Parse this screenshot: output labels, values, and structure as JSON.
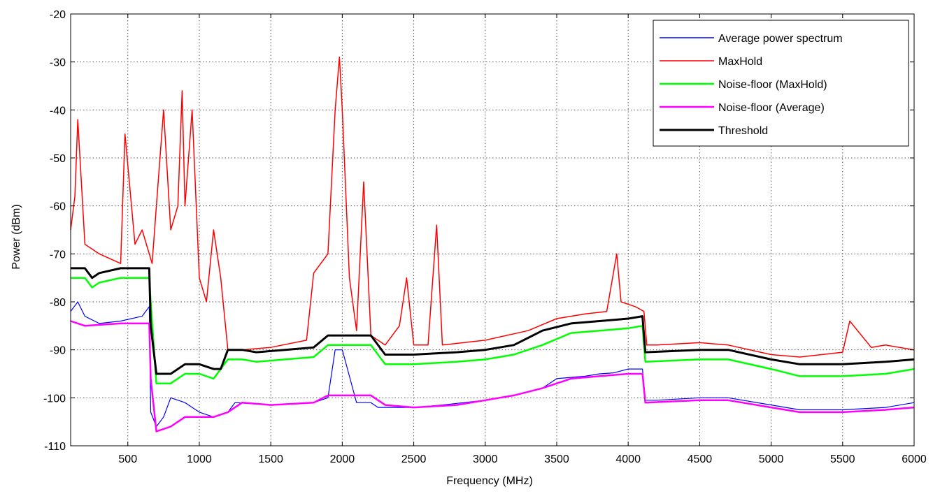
{
  "chart_data": {
    "type": "line",
    "title": "",
    "xlabel": "Frequency (MHz)",
    "ylabel": "Power (dBm)",
    "xlim": [
      100,
      6000
    ],
    "ylim": [
      -110,
      -20
    ],
    "xticks": [
      500,
      1000,
      1500,
      2000,
      2500,
      3000,
      3500,
      4000,
      4500,
      5000,
      5500,
      6000
    ],
    "yticks": [
      -110,
      -100,
      -90,
      -80,
      -70,
      -60,
      -50,
      -40,
      -30,
      -20
    ],
    "grid": true,
    "legend_position": "top-right",
    "colors": {
      "average": "#0000ff",
      "maxhold": "#ff0000",
      "nf_maxhold": "#00ff00",
      "nf_average": "#ff00ff",
      "threshold": "#000000"
    },
    "series": [
      {
        "name": "Average power spectrum",
        "key": "average",
        "x": [
          100,
          150,
          200,
          300,
          450,
          600,
          650,
          660,
          700,
          750,
          800,
          900,
          1000,
          1100,
          1200,
          1250,
          1500,
          1800,
          1900,
          1950,
          2000,
          2100,
          2200,
          2250,
          2500,
          2700,
          3000,
          3200,
          3400,
          3500,
          3700,
          3800,
          3900,
          4000,
          4100,
          4120,
          4200,
          4500,
          4700,
          5000,
          5200,
          5500,
          5800,
          6000
        ],
        "y": [
          -82,
          -80,
          -83,
          -84.5,
          -84,
          -83,
          -81,
          -103,
          -106,
          -104,
          -100,
          -101,
          -103,
          -104,
          -103,
          -101,
          -101.5,
          -101,
          -100,
          -90,
          -90,
          -101,
          -101,
          -102,
          -102,
          -101.5,
          -100.5,
          -99.5,
          -98,
          -96,
          -95.5,
          -95,
          -94.8,
          -94,
          -94,
          -100.5,
          -100.5,
          -100,
          -100,
          -101.5,
          -102.5,
          -102.5,
          -102,
          -101
        ]
      },
      {
        "name": "MaxHold",
        "key": "maxhold",
        "x": [
          100,
          130,
          150,
          200,
          300,
          450,
          480,
          550,
          600,
          650,
          670,
          700,
          750,
          780,
          800,
          850,
          880,
          900,
          950,
          1000,
          1050,
          1100,
          1150,
          1200,
          1300,
          1500,
          1750,
          1800,
          1900,
          1950,
          1980,
          2000,
          2050,
          2100,
          2150,
          2200,
          2300,
          2400,
          2450,
          2500,
          2600,
          2660,
          2700,
          3000,
          3300,
          3500,
          3700,
          3850,
          3920,
          3950,
          4050,
          4110,
          4130,
          4200,
          4500,
          4700,
          5000,
          5200,
          5500,
          5550,
          5700,
          5800,
          6000
        ],
        "y": [
          -65,
          -58,
          -42,
          -68,
          -70,
          -72,
          -45,
          -68,
          -65,
          -70,
          -72,
          -60,
          -40,
          -55,
          -65,
          -60,
          -36,
          -60,
          -40,
          -75,
          -80,
          -65,
          -75,
          -90,
          -90,
          -89.5,
          -88,
          -74,
          -70,
          -40,
          -29,
          -40,
          -75,
          -86,
          -55,
          -87,
          -89,
          -85,
          -75,
          -89,
          -89,
          -64,
          -89,
          -88,
          -86,
          -83.5,
          -82.5,
          -82,
          -70,
          -80,
          -81,
          -82,
          -89,
          -89,
          -88.5,
          -89,
          -91,
          -91.5,
          -90.5,
          -84,
          -89.5,
          -89,
          -90
        ]
      },
      {
        "name": "Noise-floor (MaxHold)",
        "key": "nf_maxhold",
        "x": [
          100,
          200,
          250,
          300,
          450,
          650,
          660,
          700,
          800,
          900,
          1000,
          1100,
          1200,
          1300,
          1400,
          1600,
          1800,
          1900,
          2200,
          2300,
          2500,
          2800,
          3000,
          3200,
          3400,
          3600,
          3800,
          4000,
          4100,
          4120,
          4500,
          4700,
          5000,
          5200,
          5500,
          5800,
          6000
        ],
        "y": [
          -75,
          -75,
          -77,
          -76,
          -75,
          -75,
          -80,
          -97,
          -97,
          -95,
          -95,
          -96,
          -92,
          -92,
          -92.5,
          -92,
          -91.5,
          -89,
          -89,
          -93,
          -93,
          -92.5,
          -92,
          -91,
          -89,
          -86.5,
          -86,
          -85.5,
          -85,
          -92.5,
          -92,
          -92,
          -94,
          -95.5,
          -95.5,
          -95,
          -94
        ]
      },
      {
        "name": "Noise-floor (Average)",
        "key": "nf_average",
        "x": [
          100,
          200,
          450,
          650,
          660,
          700,
          800,
          900,
          1000,
          1100,
          1200,
          1300,
          1500,
          1800,
          1900,
          2200,
          2300,
          2500,
          2800,
          3000,
          3200,
          3400,
          3600,
          3800,
          4000,
          4100,
          4120,
          4500,
          4700,
          5000,
          5200,
          5500,
          5800,
          6000
        ],
        "y": [
          -84,
          -85,
          -84.5,
          -84.5,
          -96,
          -107,
          -106,
          -104,
          -104,
          -104,
          -103,
          -101,
          -101.5,
          -101,
          -99.5,
          -99.5,
          -101.5,
          -102,
          -101.5,
          -100.5,
          -99.5,
          -98,
          -96,
          -95.5,
          -95,
          -95,
          -101,
          -100.5,
          -100.5,
          -102,
          -103,
          -103,
          -102.5,
          -102
        ]
      },
      {
        "name": "Threshold",
        "key": "threshold",
        "x": [
          100,
          200,
          250,
          300,
          450,
          650,
          660,
          700,
          800,
          900,
          1000,
          1100,
          1150,
          1200,
          1300,
          1400,
          1600,
          1800,
          1900,
          2200,
          2300,
          2500,
          2800,
          3000,
          3200,
          3400,
          3600,
          3800,
          4000,
          4100,
          4120,
          4500,
          4700,
          5000,
          5200,
          5500,
          5800,
          6000
        ],
        "y": [
          -73,
          -73,
          -75,
          -74,
          -73,
          -73,
          -85,
          -95,
          -95,
          -93,
          -93,
          -94,
          -94,
          -90,
          -90,
          -90.5,
          -90,
          -89.5,
          -87,
          -87,
          -91,
          -91,
          -90.5,
          -90,
          -89,
          -86,
          -84.5,
          -84,
          -83.5,
          -83,
          -90.5,
          -90,
          -90,
          -92,
          -93,
          -93,
          -92.5,
          -92
        ]
      }
    ]
  }
}
